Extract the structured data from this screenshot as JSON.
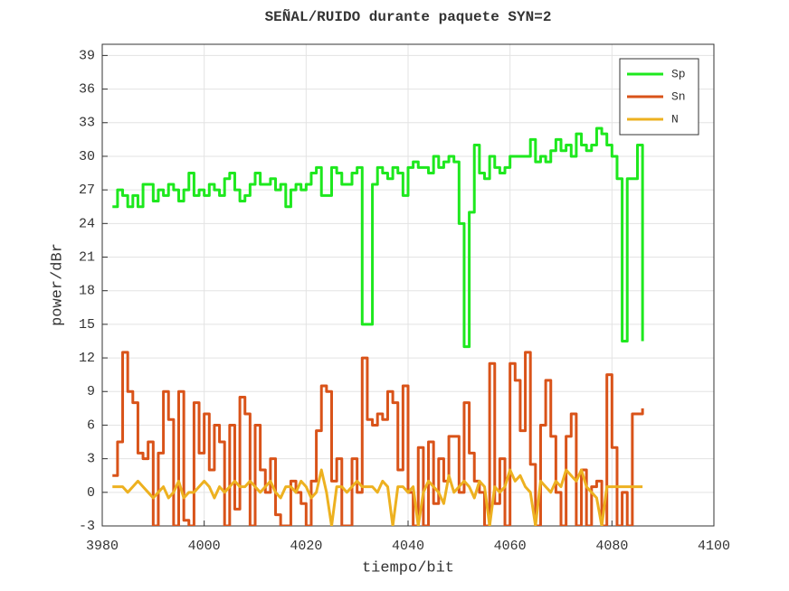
{
  "chart_data": {
    "type": "stairs",
    "title": "SEÑAL/RUIDO durante paquete SYN=2",
    "xlabel": "tiempo/bit",
    "ylabel": "power/dBr",
    "xlim": [
      3980,
      4100
    ],
    "xticks": [
      3980,
      4000,
      4020,
      4040,
      4060,
      4080,
      4100
    ],
    "ylim": [
      -3,
      40
    ],
    "yticks": [
      -3,
      0,
      3,
      6,
      9,
      12,
      15,
      18,
      21,
      24,
      27,
      30,
      33,
      36,
      39
    ],
    "grid": true,
    "legend": "upper right",
    "x": [
      3982,
      3983,
      3984,
      3985,
      3986,
      3987,
      3988,
      3989,
      3990,
      3991,
      3992,
      3993,
      3994,
      3995,
      3996,
      3997,
      3998,
      3999,
      4000,
      4001,
      4002,
      4003,
      4004,
      4005,
      4006,
      4007,
      4008,
      4009,
      4010,
      4011,
      4012,
      4013,
      4014,
      4015,
      4016,
      4017,
      4018,
      4019,
      4020,
      4021,
      4022,
      4023,
      4024,
      4025,
      4026,
      4027,
      4028,
      4029,
      4030,
      4031,
      4032,
      4033,
      4034,
      4035,
      4036,
      4037,
      4038,
      4039,
      4040,
      4041,
      4042,
      4043,
      4044,
      4045,
      4046,
      4047,
      4048,
      4049,
      4050,
      4051,
      4052,
      4053,
      4054,
      4055,
      4056,
      4057,
      4058,
      4059,
      4060,
      4061,
      4062,
      4063,
      4064,
      4065,
      4066,
      4067,
      4068,
      4069,
      4070,
      4071,
      4072,
      4073,
      4074,
      4075,
      4076,
      4077,
      4078,
      4079,
      4080,
      4081,
      4082,
      4083,
      4084,
      4085,
      4086
    ],
    "series": [
      {
        "name": "Sp",
        "color": "#1ee81e",
        "values": [
          25.5,
          27,
          26.5,
          25.5,
          26.5,
          25.5,
          27.5,
          27.5,
          26,
          27,
          26.5,
          27.5,
          27,
          26,
          27,
          28.5,
          26.5,
          27,
          26.5,
          27.5,
          27,
          26.5,
          28,
          28.5,
          27,
          26,
          26.5,
          27.5,
          28.5,
          27.5,
          27.5,
          28,
          27,
          27.5,
          25.5,
          27,
          27.5,
          27,
          27.5,
          28.5,
          29,
          26.5,
          26.5,
          29,
          28.5,
          27.5,
          27.5,
          28.5,
          29,
          15,
          15,
          27.5,
          29,
          28.5,
          28,
          29,
          28.5,
          26.5,
          29,
          29.5,
          29,
          29,
          28.5,
          30,
          29,
          29.5,
          30,
          29.5,
          24,
          13,
          25,
          31,
          28.5,
          28,
          30,
          29,
          28.5,
          29,
          30,
          30,
          30,
          30,
          31.5,
          29.5,
          30,
          29.5,
          30.5,
          31.5,
          30.5,
          31,
          30,
          32,
          31,
          30.5,
          31,
          32.5,
          32,
          31,
          30,
          28,
          13.5,
          28,
          28,
          31,
          13.5
        ]
      },
      {
        "name": "Sn",
        "color": "#d95319",
        "values": [
          1.5,
          4.5,
          12.5,
          9,
          8,
          3.5,
          3,
          4.5,
          -3,
          3.5,
          9,
          6.5,
          -3,
          9,
          -2.5,
          -3,
          8,
          3.5,
          7,
          2,
          6,
          4.5,
          -3,
          6,
          -1.5,
          8.5,
          7,
          -3,
          6,
          2,
          0,
          3,
          -2,
          -3,
          -3,
          1,
          0,
          -1,
          -3,
          1,
          5.5,
          9.5,
          9,
          1,
          3,
          -3,
          -3,
          3,
          0,
          12,
          6.5,
          6,
          7,
          6.5,
          9,
          8,
          2,
          9.5,
          0,
          -3,
          4,
          -3,
          4.5,
          -1,
          3,
          1,
          5,
          5,
          0,
          8,
          3.5,
          1,
          0,
          -3,
          11.5,
          -1,
          3,
          -3,
          11.5,
          10,
          5.5,
          12.5,
          2.5,
          -3,
          6,
          10,
          5,
          0,
          -3,
          5,
          7,
          -3,
          2,
          -3,
          0.5,
          1,
          -3,
          10.5,
          4,
          -3,
          0,
          -3,
          7,
          7,
          7.5
        ]
      },
      {
        "name": "N",
        "color": "#edb120",
        "values": [
          0.5,
          0.5,
          0.5,
          0,
          0.5,
          1,
          0.5,
          0,
          -0.5,
          0,
          0.5,
          -0.5,
          0,
          1,
          -0.5,
          0,
          0,
          0.5,
          1,
          0.5,
          -0.5,
          0.5,
          0,
          0.5,
          1,
          0.5,
          0.5,
          1,
          0.5,
          0,
          0.5,
          1,
          0,
          -0.5,
          0.5,
          0.5,
          0,
          1,
          0.5,
          -0.5,
          0,
          2,
          0,
          -3,
          0.5,
          0.5,
          0,
          0.5,
          1,
          0.5,
          0.5,
          0.5,
          0,
          1,
          0.5,
          -3,
          0.5,
          0.5,
          0,
          0.5,
          -3,
          0,
          1,
          0.5,
          0,
          -1,
          1.5,
          0,
          0.5,
          1,
          0.5,
          -0.5,
          1,
          0.5,
          -3,
          0.5,
          0,
          0.5,
          2,
          1,
          1.5,
          0.5,
          0,
          -3,
          1,
          0.5,
          0,
          1,
          0.5,
          2,
          1.5,
          1,
          2,
          0.5,
          0,
          -0.5,
          -3,
          0.5,
          0.5,
          0.5,
          0.5,
          0.5,
          0.5,
          0.5,
          0.5
        ]
      }
    ]
  }
}
